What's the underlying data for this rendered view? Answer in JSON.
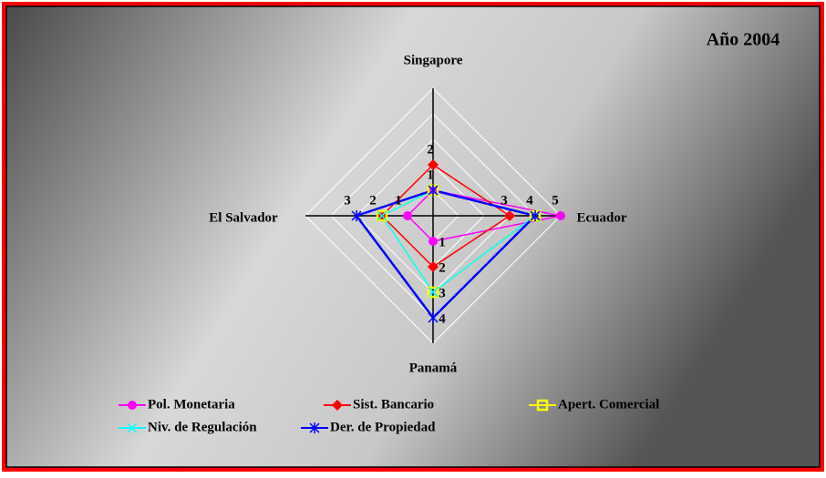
{
  "chart_data": {
    "type": "radar",
    "title": "Año 2004",
    "categories": [
      "Singapore",
      "Ecuador",
      "Panamá",
      "El Salvador"
    ],
    "series": [
      {
        "name": "Pol. Monetaria",
        "color": "#ff00ff",
        "marker": "circle",
        "values": [
          1,
          5,
          1,
          1
        ]
      },
      {
        "name": "Sist. Bancario",
        "color": "#ff0000",
        "marker": "diamond",
        "values": [
          2,
          3,
          2,
          2
        ]
      },
      {
        "name": "Apert. Comercial",
        "color": "#ffff00",
        "marker": "square",
        "values": [
          1,
          4,
          3,
          2
        ]
      },
      {
        "name": "Niv. de Regulación",
        "color": "#00ffff",
        "marker": "x",
        "values": [
          1,
          4,
          3,
          2
        ]
      },
      {
        "name": "Der. de Propiedad",
        "color": "#0000ff",
        "marker": "star",
        "values": [
          1,
          4,
          4,
          3
        ]
      }
    ],
    "rlim": [
      0,
      5
    ],
    "rticks": [
      1,
      2,
      3,
      4,
      5
    ],
    "grid": true,
    "legend": "bottom"
  }
}
